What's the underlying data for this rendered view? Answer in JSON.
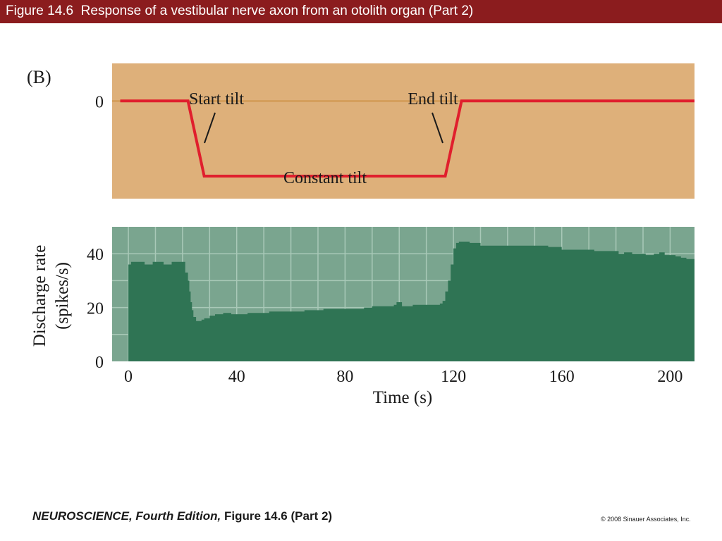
{
  "header": {
    "title": "Figure 14.6  Response of a vestibular nerve axon from an otolith organ (Part 2)"
  },
  "panel_label": "(B)",
  "colors": {
    "title_bar": "#8b1c1e",
    "stimulus_bg": "#deb07a",
    "stimulus_line": "#e01f2d",
    "baseline": "#c98a3a",
    "response_bg": "#7aa58f",
    "response_fill": "#2f7454",
    "grid": "#a9c9b8"
  },
  "chart_data": [
    {
      "type": "line",
      "panel": "stimulus",
      "ytick_labels": [
        "0"
      ],
      "annotations": [
        "Start tilt",
        "End tilt",
        "Constant tilt"
      ],
      "x": [
        -3,
        22,
        28,
        117,
        123,
        209
      ],
      "y": [
        0,
        0,
        -1,
        -1,
        0,
        0
      ],
      "xlim": [
        -6,
        209
      ],
      "ylim": [
        -1.3,
        0.5
      ]
    },
    {
      "type": "area",
      "panel": "response",
      "xlabel": "Time (s)",
      "ylabel": "Discharge rate (spikes/s)",
      "xlim": [
        -6,
        209
      ],
      "ylim": [
        0,
        50
      ],
      "xticks": [
        0,
        40,
        80,
        120,
        160,
        200
      ],
      "yticks": [
        0,
        20,
        40
      ],
      "grid": true,
      "x": [
        0,
        1,
        5,
        6,
        8,
        9,
        12,
        13,
        15,
        16,
        18,
        19,
        20,
        21,
        22,
        22.5,
        23,
        23.5,
        24,
        25,
        26,
        27,
        28,
        30,
        32,
        35,
        38,
        41,
        44,
        48,
        52,
        58,
        65,
        72,
        80,
        87,
        90,
        93,
        96,
        98,
        99,
        101,
        103,
        105,
        110,
        114,
        115,
        116,
        117,
        118,
        119,
        120,
        121,
        122,
        126,
        130,
        140,
        150,
        155,
        158,
        160,
        165,
        172,
        180,
        181,
        183,
        186,
        190,
        191,
        194,
        196,
        198,
        200,
        202,
        204,
        206,
        209
      ],
      "y": [
        36,
        37,
        37,
        36,
        36,
        37,
        37,
        36,
        36,
        37,
        37,
        37,
        37,
        33,
        30,
        26,
        22,
        19,
        16.5,
        15,
        15,
        15.5,
        16,
        17,
        17.5,
        18,
        17.5,
        17.5,
        18,
        18,
        18.5,
        18.5,
        19,
        19.5,
        19.5,
        20,
        20.5,
        20.5,
        20.5,
        21,
        22,
        20.5,
        20.5,
        21,
        21,
        21,
        21.5,
        22.5,
        26,
        30,
        36,
        42,
        44,
        44.5,
        44,
        43,
        43,
        43,
        42.5,
        42.5,
        41.5,
        41.5,
        41,
        41,
        40,
        40.5,
        40,
        40,
        39.5,
        40,
        40.5,
        39.5,
        39.5,
        39,
        38.5,
        38,
        37
      ]
    }
  ],
  "footer": {
    "book_title": "NEUROSCIENCE,",
    "edition": " Fourth Edition,",
    "figure_ref": " Figure 14.6 (Part 2)",
    "copyright": "© 2008 Sinauer Associates, Inc."
  }
}
